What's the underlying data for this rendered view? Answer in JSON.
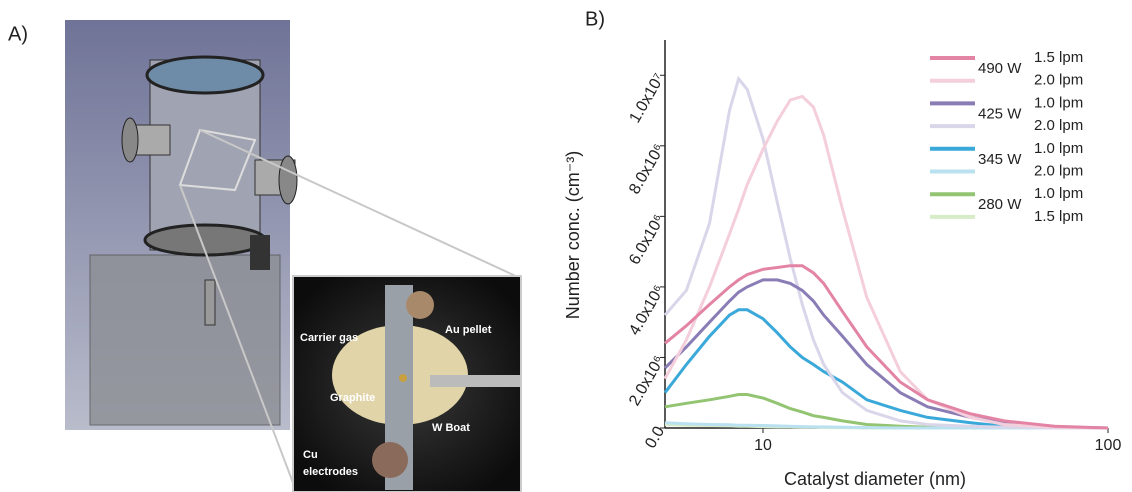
{
  "panel_a": {
    "label": "A)",
    "annotations": [
      "Carrier gas",
      "Au pellet",
      "Graphite",
      "W Boat",
      "Cu",
      "electrodes"
    ]
  },
  "chart_data": {
    "type": "line",
    "panel_label": "B)",
    "x_label": "Catalyst diameter (nm)",
    "y_label": "Number conc. (cm⁻³)",
    "xscale": "log",
    "xlim": [
      5.2,
      100
    ],
    "xticks": [
      10,
      100
    ],
    "ylim": [
      0,
      11000000
    ],
    "yticks": [
      {
        "value": 0,
        "label": "0.0"
      },
      {
        "value": 2000000,
        "label": "2.0x10⁶"
      },
      {
        "value": 4000000,
        "label": "4.0x10⁶"
      },
      {
        "value": 6000000,
        "label": "6.0x10⁶"
      },
      {
        "value": 8000000,
        "label": "8.0x10⁶"
      },
      {
        "value": 10000000,
        "label": "1.0x10⁷"
      }
    ],
    "legend_groups": [
      "490 W",
      "425 W",
      "345 W",
      "280 W"
    ],
    "x": [
      5.2,
      6,
      7,
      8,
      8.5,
      9,
      10,
      11,
      12,
      13,
      14,
      15,
      17,
      20,
      25,
      30,
      40,
      50,
      70,
      100
    ],
    "series": [
      {
        "name": "1.5 lpm",
        "color": "#e384a5",
        "values": [
          2400000,
          2900000,
          3500000,
          4000000,
          4200000,
          4350000,
          4500000,
          4550000,
          4600000,
          4600000,
          4400000,
          4100000,
          3300000,
          2300000,
          1300000,
          800000,
          400000,
          200000,
          50000,
          0
        ]
      },
      {
        "name": "2.0 lpm",
        "color": "#f4cfdb",
        "values": [
          1400000,
          2500000,
          4000000,
          5500000,
          6200000,
          6900000,
          7900000,
          8700000,
          9300000,
          9400000,
          9100000,
          8300000,
          6200000,
          3700000,
          1600000,
          800000,
          300000,
          100000,
          20000,
          0
        ]
      },
      {
        "name": "1.0 lpm",
        "color": "#8a7db6",
        "values": [
          1700000,
          2300000,
          3000000,
          3600000,
          3850000,
          4000000,
          4200000,
          4200000,
          4100000,
          3900000,
          3600000,
          3200000,
          2600000,
          1800000,
          1000000,
          600000,
          300000,
          150000,
          30000,
          0
        ]
      },
      {
        "name": "2.0 lpm",
        "color": "#dad6ea",
        "values": [
          3200000,
          3900000,
          5800000,
          9000000,
          9900000,
          9600000,
          8200000,
          6400000,
          4800000,
          3500000,
          2500000,
          1800000,
          1000000,
          500000,
          200000,
          100000,
          50000,
          20000,
          0,
          0
        ]
      },
      {
        "name": "1.0 lpm",
        "color": "#3aa9da",
        "values": [
          1000000,
          1800000,
          2600000,
          3200000,
          3350000,
          3350000,
          3100000,
          2700000,
          2300000,
          2000000,
          1800000,
          1600000,
          1300000,
          800000,
          500000,
          300000,
          150000,
          50000,
          20000,
          0
        ]
      },
      {
        "name": "2.0 lpm",
        "color": "#b9e1f0",
        "values": [
          150000,
          120000,
          100000,
          90000,
          80000,
          80000,
          70000,
          60000,
          50000,
          40000,
          30000,
          30000,
          20000,
          10000,
          0,
          0,
          0,
          0,
          0,
          0
        ]
      },
      {
        "name": "1.0 lpm",
        "color": "#92c472",
        "values": [
          600000,
          700000,
          800000,
          900000,
          950000,
          950000,
          850000,
          700000,
          550000,
          450000,
          350000,
          300000,
          200000,
          100000,
          50000,
          20000,
          0,
          0,
          0,
          0
        ]
      },
      {
        "name": "1.5 lpm",
        "color": "#d7ecc9",
        "values": [
          100000,
          80000,
          70000,
          60000,
          50000,
          50000,
          40000,
          30000,
          30000,
          20000,
          20000,
          10000,
          10000,
          0,
          0,
          0,
          0,
          0,
          0,
          0
        ]
      }
    ]
  }
}
